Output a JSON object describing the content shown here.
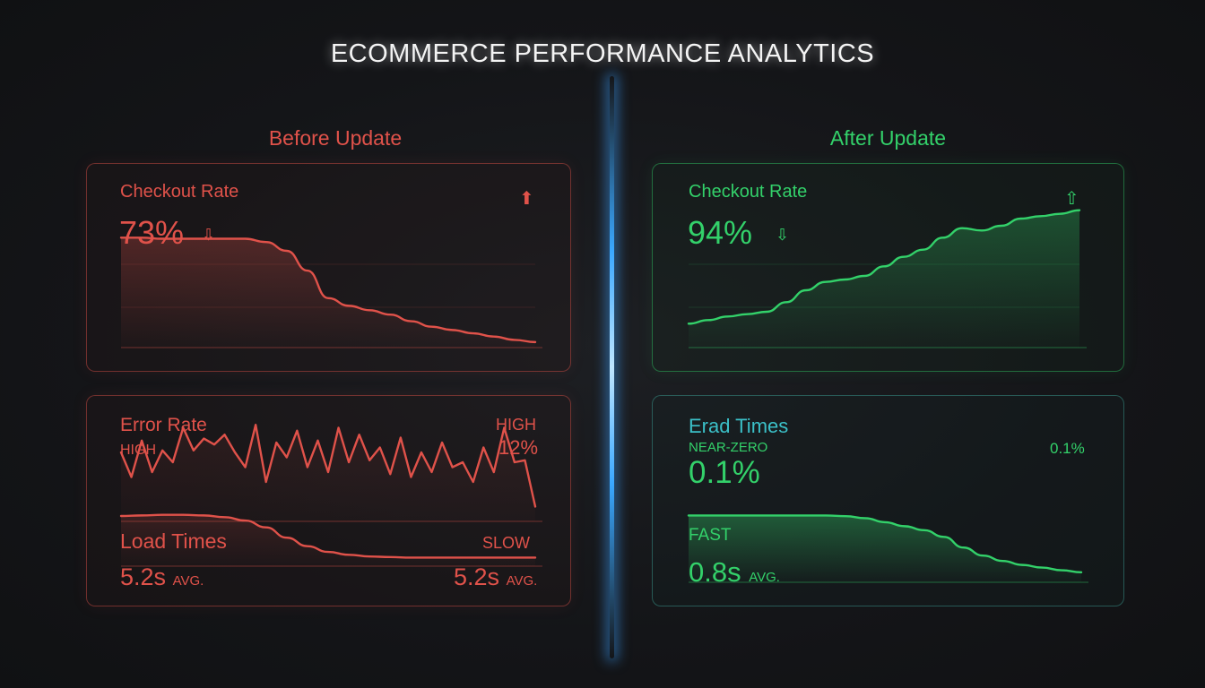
{
  "title": "ECOMMERCE PERFORMANCE ANALYTICS",
  "colors": {
    "red": "#e0524a",
    "green": "#33d16a",
    "teal": "#3bc0c8",
    "divider": "#3aa8ff",
    "background": "#141518"
  },
  "before": {
    "heading": "Before Update",
    "checkout": {
      "label": "Checkout Rate",
      "value": "73%",
      "arrow_icon": "outline-down-arrow-icon",
      "corner_icon": "solid-up-arrow-icon"
    },
    "error": {
      "label": "Error Rate",
      "left_tag": "HIGH",
      "right_tag": "HIGH",
      "right_value": "12%"
    },
    "load": {
      "label": "Load Times",
      "right_tag": "SLOW",
      "left_value": "5.2s",
      "left_unit": "AVG.",
      "right_value": "5.2s",
      "right_unit": "AVG."
    }
  },
  "after": {
    "heading": "After Update",
    "checkout": {
      "label": "Checkout Rate",
      "value": "94%",
      "arrow_icon": "outline-down-arrow-icon",
      "corner_icon": "outline-up-arrow-icon"
    },
    "error": {
      "label": "Erad Times",
      "tag": "NEAR-ZERO",
      "value": "0.1%",
      "right_value": "0.1%"
    },
    "load": {
      "tag": "FAST",
      "value": "0.8s",
      "unit": "AVG."
    }
  },
  "chart_data": [
    {
      "type": "area",
      "panel": "before-checkout-rate",
      "color": "#e0524a",
      "x": [
        0,
        1,
        2,
        3,
        4,
        5,
        6,
        7,
        8,
        9,
        10,
        11,
        12,
        13,
        14,
        15,
        16,
        17,
        18,
        19,
        20
      ],
      "values": [
        100,
        100,
        99,
        99,
        99,
        99,
        99,
        96,
        88,
        70,
        45,
        38,
        34,
        30,
        24,
        19,
        16,
        13,
        10,
        7,
        5
      ],
      "ylim": [
        0,
        110
      ],
      "grid": true
    },
    {
      "type": "line",
      "panel": "before-error-rate",
      "color": "#e0524a",
      "x": [
        0,
        1,
        2,
        3,
        4,
        5,
        6,
        7,
        8,
        9,
        10,
        11,
        12,
        13,
        14,
        15,
        16,
        17,
        18,
        19,
        20,
        21,
        22,
        23,
        24,
        25,
        26,
        27,
        28,
        29,
        30,
        31,
        32,
        33,
        34,
        35,
        36,
        37,
        38,
        39,
        40
      ],
      "values": [
        70,
        45,
        82,
        50,
        72,
        60,
        95,
        72,
        84,
        78,
        88,
        70,
        55,
        98,
        40,
        80,
        65,
        92,
        55,
        82,
        50,
        95,
        60,
        88,
        62,
        75,
        48,
        85,
        45,
        70,
        50,
        80,
        55,
        60,
        40,
        75,
        50,
        95,
        60,
        62,
        15
      ],
      "ylim": [
        0,
        100
      ]
    },
    {
      "type": "area",
      "panel": "before-load-times",
      "color": "#e0524a",
      "x": [
        0,
        1,
        2,
        3,
        4,
        5,
        6,
        7,
        8,
        9,
        10,
        11,
        12,
        13,
        14,
        15,
        16,
        17,
        18,
        19,
        20
      ],
      "values": [
        88,
        89,
        90,
        90,
        89,
        86,
        80,
        68,
        50,
        35,
        25,
        20,
        17,
        16,
        15,
        15,
        15,
        15,
        15,
        15,
        15
      ],
      "ylim": [
        0,
        110
      ]
    },
    {
      "type": "area",
      "panel": "after-checkout-rate",
      "color": "#33d16a",
      "x": [
        0,
        1,
        2,
        3,
        4,
        5,
        6,
        7,
        8,
        9,
        10,
        11,
        12,
        13,
        14,
        15,
        16,
        17,
        18,
        19,
        20
      ],
      "values": [
        20,
        23,
        26,
        28,
        30,
        38,
        48,
        55,
        57,
        60,
        68,
        76,
        82,
        92,
        100,
        98,
        102,
        108,
        110,
        112,
        115
      ],
      "ylim": [
        0,
        120
      ],
      "grid": true
    },
    {
      "type": "area",
      "panel": "after-load-times",
      "color": "#33d16a",
      "x": [
        0,
        1,
        2,
        3,
        4,
        5,
        6,
        7,
        8,
        9,
        10,
        11,
        12,
        13,
        14,
        15,
        16,
        17,
        18,
        19,
        20
      ],
      "values": [
        100,
        100,
        100,
        100,
        100,
        100,
        100,
        100,
        99,
        96,
        90,
        84,
        78,
        68,
        52,
        40,
        32,
        26,
        22,
        18,
        15
      ],
      "ylim": [
        0,
        110
      ]
    }
  ]
}
